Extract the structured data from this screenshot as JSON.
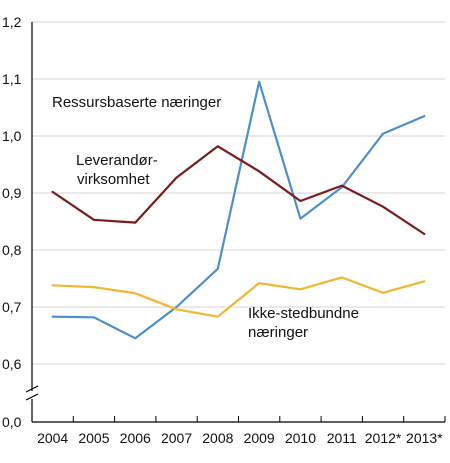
{
  "chart_data": {
    "type": "line",
    "title": "",
    "xlabel": "",
    "ylabel": "",
    "categories": [
      "2004",
      "2005",
      "2006",
      "2007",
      "2008",
      "2009",
      "2010",
      "2011",
      "2012*",
      "2013*"
    ],
    "y_ticks": [
      "1,2",
      "1,1",
      "1,0",
      "0,9",
      "0,8",
      "0,7",
      "0,6",
      "0,0"
    ],
    "y_tick_values": [
      1.2,
      1.1,
      1.0,
      0.9,
      0.8,
      0.7,
      0.6,
      0.0
    ],
    "axis_break": true,
    "ylim": [
      0.55,
      1.2
    ],
    "grid": true,
    "legend": "inline labels",
    "series": [
      {
        "name": "Ressursbaserte næringer",
        "color": "#4f8fc9",
        "values": [
          0.683,
          0.682,
          0.645,
          0.7,
          0.767,
          1.095,
          0.855,
          0.91,
          1.004,
          1.035
        ]
      },
      {
        "name_lines": [
          "Leverandør-",
          "virksomhet"
        ],
        "color": "#7a1c1c",
        "values": [
          0.902,
          0.853,
          0.848,
          0.927,
          0.982,
          0.938,
          0.886,
          0.913,
          0.876,
          0.828
        ]
      },
      {
        "name_lines": [
          "Ikke-stedbundne",
          "næringer"
        ],
        "color": "#f2b632",
        "values": [
          0.738,
          0.735,
          0.724,
          0.696,
          0.683,
          0.742,
          0.731,
          0.752,
          0.725,
          0.745
        ]
      }
    ]
  }
}
